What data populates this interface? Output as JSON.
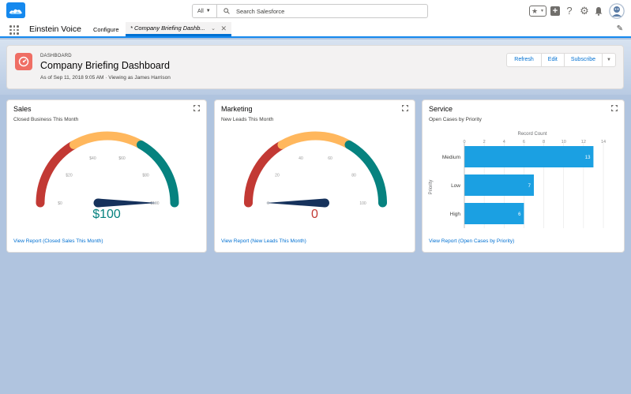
{
  "header": {
    "search_scope": "All",
    "search_placeholder": "Search Salesforce"
  },
  "nav": {
    "app_name": "Einstein Voice",
    "items": [
      "Configure"
    ],
    "active_tab": "* Company Briefing Dashb..."
  },
  "page": {
    "object_type": "DASHBOARD",
    "title": "Company Briefing Dashboard",
    "subtitle": "As of Sep 11, 2018 9:05 AM · Viewing as James Harrison",
    "buttons": [
      "Refresh",
      "Edit",
      "Subscribe"
    ]
  },
  "colors": {
    "brand": "#0070d2",
    "gauge_red": "#c23934",
    "gauge_orange": "#ffb75d",
    "gauge_teal": "#06827f",
    "bar": "#1ba0e2",
    "needle": "#16325c"
  },
  "widgets": {
    "sales": {
      "title": "Sales",
      "subtitle": "Closed Business This Month",
      "value": "$100",
      "value_color": "#06827f",
      "ticks": [
        "$0",
        "$20",
        "$40",
        "$60",
        "$80",
        "$100"
      ],
      "link": "View Report (Closed Sales This Month)",
      "needle_value": 100,
      "max": 100
    },
    "marketing": {
      "title": "Marketing",
      "subtitle": "New Leads This Month",
      "value": "0",
      "value_color": "#c23934",
      "ticks": [
        "0",
        "20",
        "40",
        "60",
        "80",
        "100"
      ],
      "link": "View Report (New Leads This Month)",
      "needle_value": 0,
      "max": 100
    },
    "service": {
      "title": "Service",
      "subtitle": "Open Cases by Priority",
      "link": "View Report (Open Cases by Priority)"
    }
  },
  "chart_data": {
    "type": "bar",
    "orientation": "horizontal",
    "xlabel": "Record Count",
    "ylabel": "Priority",
    "categories": [
      "Medium",
      "Low",
      "High"
    ],
    "values": [
      13,
      7,
      6
    ],
    "xlim": [
      0,
      14
    ],
    "x_ticks": [
      "0",
      "2",
      "4",
      "6",
      "8",
      "10",
      "12",
      "14"
    ],
    "grid": true
  }
}
